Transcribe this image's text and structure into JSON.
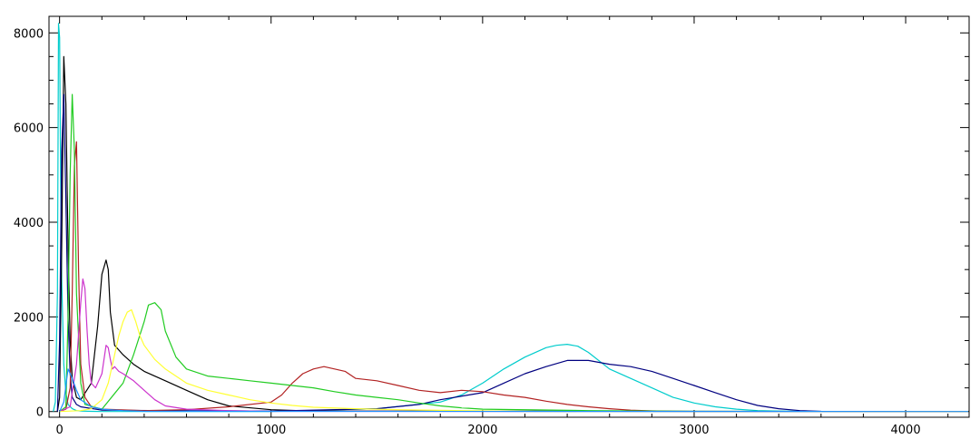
{
  "chart_data": {
    "type": "line",
    "title": "",
    "xlabel": "",
    "ylabel": "",
    "xlim": [
      -50,
      4300
    ],
    "ylim": [
      -120,
      8350
    ],
    "grid": false,
    "legend": "none",
    "x_ticks": [
      0,
      1000,
      2000,
      3000,
      4000
    ],
    "x_tick_labels": [
      "0",
      "1000",
      "2000",
      "3000",
      "4000"
    ],
    "y_ticks": [
      0,
      2000,
      4000,
      6000,
      8000
    ],
    "y_tick_labels": [
      "0",
      "2000",
      "4000",
      "6000",
      "8000"
    ],
    "series": [
      {
        "color": "#00cccc",
        "x": [
          -30,
          -20,
          -10,
          -5,
          0,
          5,
          10,
          20,
          30,
          40,
          60,
          80,
          100,
          150,
          200,
          300,
          400,
          500,
          1000,
          1500,
          1800,
          1900,
          2000,
          2100,
          2200,
          2300,
          2350,
          2400,
          2450,
          2500,
          2600,
          2700,
          2800,
          2900,
          3000,
          3100,
          3200,
          3300,
          3400,
          3500,
          3600,
          3800,
          4300
        ],
        "y": [
          0,
          200,
          2500,
          8200,
          7900,
          5000,
          2800,
          1000,
          400,
          150,
          60,
          20,
          10,
          5,
          0,
          0,
          0,
          0,
          0,
          60,
          200,
          350,
          600,
          900,
          1150,
          1350,
          1400,
          1420,
          1380,
          1250,
          900,
          700,
          500,
          300,
          180,
          100,
          50,
          20,
          10,
          5,
          2,
          0,
          0
        ]
      },
      {
        "color": "#000000",
        "x": [
          -10,
          0,
          10,
          20,
          30,
          40,
          50,
          60,
          80,
          100,
          150,
          180,
          200,
          220,
          230,
          240,
          260,
          300,
          350,
          400,
          500,
          600,
          700,
          800,
          1000,
          1200,
          4300
        ],
        "y": [
          0,
          300,
          3500,
          7500,
          6500,
          3500,
          1500,
          700,
          300,
          250,
          600,
          1800,
          2900,
          3200,
          3000,
          2100,
          1400,
          1200,
          1000,
          850,
          650,
          450,
          250,
          120,
          40,
          10,
          0
        ]
      },
      {
        "color": "#000080",
        "x": [
          -10,
          0,
          10,
          20,
          30,
          40,
          50,
          60,
          80,
          100,
          200,
          500,
          1000,
          1500,
          1700,
          1800,
          2000,
          2100,
          2200,
          2300,
          2400,
          2500,
          2600,
          2700,
          2800,
          2900,
          3000,
          3100,
          3200,
          3300,
          3400,
          3500,
          3600,
          4300
        ],
        "y": [
          0,
          1500,
          5500,
          6700,
          4500,
          2000,
          800,
          300,
          150,
          100,
          30,
          20,
          10,
          60,
          150,
          250,
          400,
          600,
          800,
          950,
          1080,
          1080,
          1000,
          950,
          850,
          700,
          550,
          400,
          250,
          130,
          60,
          20,
          5,
          0
        ]
      },
      {
        "color": "#b22222",
        "x": [
          0,
          30,
          50,
          60,
          70,
          80,
          90,
          100,
          120,
          150,
          200,
          400,
          600,
          800,
          1000,
          1050,
          1100,
          1150,
          1200,
          1250,
          1300,
          1350,
          1400,
          1500,
          1600,
          1700,
          1800,
          1900,
          2000,
          2100,
          2200,
          2300,
          2400,
          2500,
          2600,
          2700,
          2800,
          2900,
          3000,
          3100,
          3200,
          4300
        ],
        "y": [
          0,
          50,
          500,
          2500,
          5200,
          5700,
          3000,
          1000,
          300,
          100,
          50,
          20,
          40,
          100,
          200,
          350,
          600,
          800,
          900,
          950,
          900,
          850,
          700,
          650,
          550,
          450,
          400,
          450,
          420,
          350,
          300,
          220,
          150,
          100,
          60,
          30,
          15,
          5,
          2,
          0,
          0,
          0
        ]
      },
      {
        "color": "#22cc22",
        "x": [
          0,
          30,
          40,
          50,
          60,
          70,
          80,
          100,
          120,
          200,
          300,
          350,
          400,
          420,
          450,
          480,
          500,
          550,
          600,
          700,
          800,
          900,
          1000,
          1100,
          1200,
          1300,
          1400,
          1500,
          1600,
          1700,
          1800,
          1900,
          2000,
          2500,
          3000,
          4300
        ],
        "y": [
          0,
          100,
          2000,
          5000,
          6700,
          5500,
          2500,
          600,
          150,
          50,
          600,
          1200,
          1900,
          2250,
          2300,
          2150,
          1700,
          1150,
          900,
          750,
          700,
          650,
          600,
          550,
          500,
          420,
          350,
          300,
          250,
          180,
          120,
          80,
          50,
          20,
          5,
          0
        ]
      },
      {
        "color": "#cc33cc",
        "x": [
          0,
          50,
          80,
          100,
          110,
          120,
          130,
          140,
          150,
          170,
          200,
          220,
          230,
          240,
          250,
          260,
          280,
          300,
          350,
          400,
          450,
          500,
          600,
          800,
          1000,
          4300
        ],
        "y": [
          0,
          100,
          1000,
          2300,
          2800,
          2600,
          1700,
          1000,
          600,
          500,
          800,
          1400,
          1350,
          1100,
          900,
          950,
          850,
          800,
          650,
          450,
          250,
          120,
          50,
          20,
          5,
          0
        ]
      },
      {
        "color": "#ffff33",
        "x": [
          0,
          100,
          150,
          200,
          230,
          260,
          280,
          300,
          320,
          340,
          360,
          380,
          400,
          450,
          500,
          550,
          600,
          700,
          800,
          900,
          1000,
          1100,
          1200,
          1400,
          1600,
          1800,
          2000,
          2200,
          2300,
          4300
        ],
        "y": [
          0,
          20,
          60,
          250,
          600,
          1200,
          1600,
          1900,
          2100,
          2150,
          1900,
          1600,
          1400,
          1100,
          900,
          750,
          600,
          450,
          350,
          250,
          180,
          130,
          90,
          60,
          40,
          25,
          15,
          5,
          0,
          0
        ]
      },
      {
        "color": "#1e90ff",
        "x": [
          0,
          20,
          40,
          60,
          80,
          100,
          150,
          200,
          300,
          400,
          4300
        ],
        "y": [
          0,
          200,
          900,
          700,
          450,
          250,
          100,
          50,
          20,
          5,
          0
        ]
      }
    ]
  }
}
